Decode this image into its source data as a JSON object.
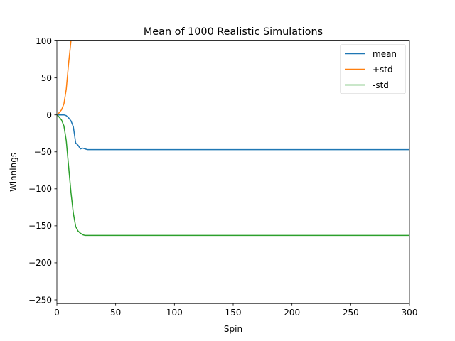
{
  "chart_data": {
    "type": "line",
    "title": "Mean of 1000 Realistic Simulations",
    "xlabel": "Spin",
    "ylabel": "Winnings",
    "xlim": [
      0,
      300
    ],
    "ylim": [
      -255,
      100
    ],
    "xticks": [
      0,
      50,
      100,
      150,
      200,
      250,
      300
    ],
    "yticks": [
      100,
      50,
      0,
      -50,
      -100,
      -150,
      -200,
      -250
    ],
    "xtick_labels": [
      "0",
      "50",
      "100",
      "150",
      "200",
      "250",
      "300"
    ],
    "ytick_labels": [
      "100",
      "50",
      "0",
      "−50",
      "−100",
      "−150",
      "−200",
      "−250"
    ],
    "grid": false,
    "legend_position": "top-right",
    "series": [
      {
        "name": "mean",
        "color": "#1f77b4",
        "x": [
          0,
          2,
          4,
          6,
          8,
          10,
          12,
          14,
          16,
          18,
          20,
          22,
          24,
          26,
          28,
          30,
          35,
          40,
          60,
          100,
          150,
          200,
          250,
          300
        ],
        "y": [
          0,
          0,
          0,
          0,
          -1,
          -4,
          -8,
          -16,
          -38,
          -41,
          -46,
          -45,
          -46,
          -47,
          -47,
          -47,
          -47,
          -47,
          -47,
          -47,
          -47,
          -47,
          -47,
          -47
        ]
      },
      {
        "name": "+std",
        "color": "#ff7f0e",
        "x": [
          0,
          2,
          4,
          6,
          8,
          10,
          12
        ],
        "y": [
          0,
          3,
          7,
          15,
          35,
          70,
          100
        ]
      },
      {
        "name": "-std",
        "color": "#2ca02c",
        "x": [
          0,
          2,
          4,
          6,
          8,
          10,
          12,
          14,
          16,
          18,
          20,
          22,
          24,
          26,
          28,
          30,
          35,
          40,
          60,
          100,
          150,
          200,
          250,
          300
        ],
        "y": [
          0,
          -3,
          -7,
          -15,
          -35,
          -70,
          -105,
          -133,
          -151,
          -157,
          -160,
          -162,
          -163,
          -163,
          -163,
          -163,
          -163,
          -163,
          -163,
          -163,
          -163,
          -163,
          -163,
          -163
        ]
      }
    ]
  }
}
